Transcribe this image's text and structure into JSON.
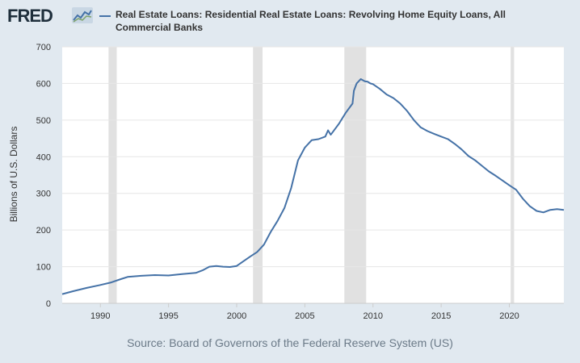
{
  "logo": {
    "text": "FRED",
    "icon": "fred-graph-icon"
  },
  "source": "Source: Board of Governors of the Federal Reserve System (US)",
  "colors": {
    "line": "#4572a7",
    "recession": "#e1e1e1",
    "background": "#e1e9f0",
    "plot": "#ffffff",
    "grid": "#e6e6e6"
  },
  "chart_data": {
    "type": "line",
    "title": "Real Estate Loans: Residential Real Estate Loans: Revolving Home Equity Loans, All Commercial Banks",
    "xlabel": "",
    "ylabel": "Billions of U.S. Dollars",
    "xlim": [
      1987.2,
      2024.0
    ],
    "ylim": [
      0,
      700
    ],
    "xticks": [
      1990,
      1995,
      2000,
      2005,
      2010,
      2015,
      2020
    ],
    "yticks": [
      0,
      100,
      200,
      300,
      400,
      500,
      600,
      700
    ],
    "grid": true,
    "legend": "top",
    "recessions": [
      [
        1990.6,
        1991.2
      ],
      [
        2001.2,
        2001.9
      ],
      [
        2007.9,
        2009.5
      ],
      [
        2020.1,
        2020.35
      ]
    ],
    "series": [
      {
        "name": "Real Estate Loans: Residential Real Estate Loans: Revolving Home Equity Loans, All Commercial Banks",
        "x": [
          1987.2,
          1988,
          1989,
          1990,
          1990.8,
          1991.5,
          1992,
          1993,
          1994,
          1995,
          1996,
          1997,
          1997.5,
          1998,
          1998.5,
          1999,
          1999.5,
          2000,
          2000.5,
          2001,
          2001.5,
          2002,
          2002.5,
          2003,
          2003.5,
          2004,
          2004.5,
          2005,
          2005.5,
          2006,
          2006.5,
          2006.7,
          2006.9,
          2007,
          2007.5,
          2008,
          2008.5,
          2008.6,
          2008.8,
          2009.1,
          2009.4,
          2009.6,
          2009.8,
          2010,
          2010.5,
          2011,
          2011.5,
          2012,
          2012.5,
          2013,
          2013.5,
          2014,
          2014.5,
          2015,
          2015.5,
          2016,
          2016.5,
          2017,
          2017.5,
          2018,
          2018.5,
          2019,
          2019.5,
          2020,
          2020.5,
          2021,
          2021.5,
          2022,
          2022.5,
          2023,
          2023.5,
          2024
        ],
        "values": [
          25,
          33,
          42,
          50,
          57,
          66,
          72,
          75,
          77,
          76,
          80,
          83,
          90,
          100,
          102,
          100,
          99,
          102,
          115,
          128,
          140,
          160,
          195,
          225,
          260,
          315,
          390,
          425,
          445,
          448,
          455,
          472,
          460,
          465,
          490,
          520,
          545,
          580,
          600,
          612,
          606,
          605,
          600,
          598,
          585,
          570,
          560,
          545,
          525,
          500,
          480,
          470,
          462,
          455,
          448,
          435,
          420,
          402,
          390,
          375,
          360,
          348,
          335,
          322,
          310,
          285,
          265,
          252,
          248,
          255,
          257,
          255
        ]
      }
    ]
  }
}
